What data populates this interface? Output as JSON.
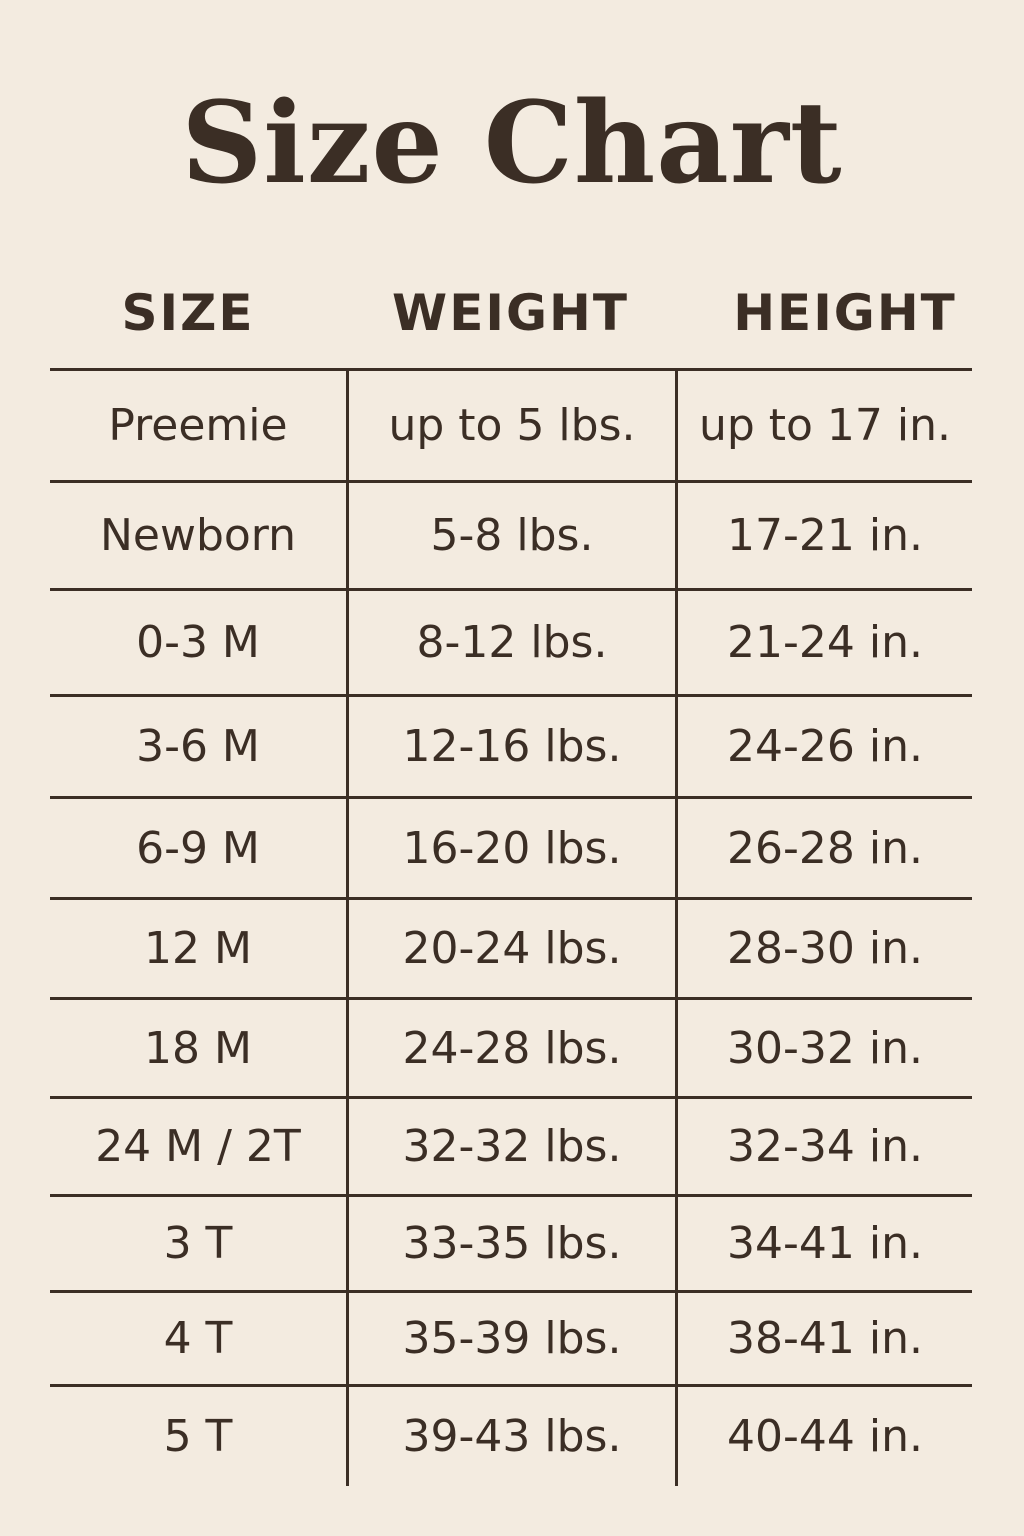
{
  "title": "Size Chart",
  "colors": {
    "background": "#f3ebe0",
    "text": "#3b2e25"
  },
  "headers": [
    "SIZE",
    "WEIGHT",
    "HEIGHT"
  ],
  "rows": [
    [
      "Preemie",
      "up to 5 lbs.",
      "up to 17 in."
    ],
    [
      "Newborn",
      "5-8 lbs.",
      "17-21 in."
    ],
    [
      "0-3 M",
      "8-12 lbs.",
      "21-24 in."
    ],
    [
      "3-6 M",
      "12-16 lbs.",
      "24-26 in."
    ],
    [
      "6-9 M",
      "16-20 lbs.",
      "26-28 in."
    ],
    [
      "12 M",
      "20-24 lbs.",
      "28-30 in."
    ],
    [
      "18 M",
      "24-28 lbs.",
      "30-32 in."
    ],
    [
      "24 M / 2T",
      "32-32 lbs.",
      "32-34 in."
    ],
    [
      "3 T",
      "33-35 lbs.",
      "34-41 in."
    ],
    [
      "4 T",
      "35-39 lbs.",
      "38-41 in."
    ],
    [
      "5 T",
      "39-43 lbs.",
      "40-44 in."
    ]
  ]
}
